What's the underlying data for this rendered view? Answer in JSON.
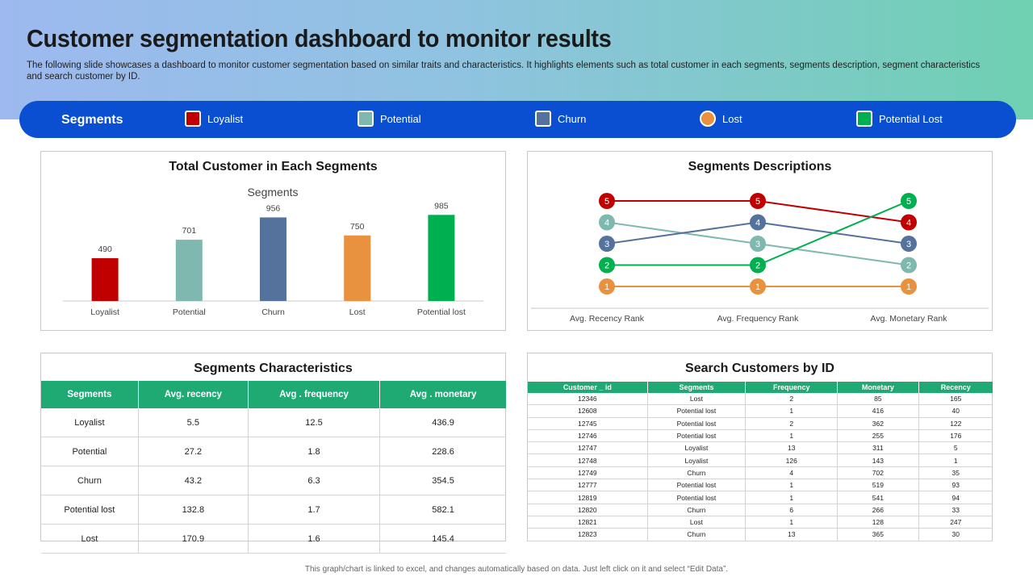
{
  "header": {
    "title": "Customer segmentation dashboard to monitor results",
    "subtitle": "The following slide showcases a dashboard to monitor customer segmentation based on similar traits and characteristics. It highlights elements such as total customer in each segments, segments description, segment characteristics and search customer by ID."
  },
  "legend": {
    "title": "Segments",
    "items": [
      {
        "label": "Loyalist",
        "color": "#c00000",
        "shape": "square"
      },
      {
        "label": "Potential",
        "color": "#7fb8ae",
        "shape": "square"
      },
      {
        "label": "Churn",
        "color": "#54729c",
        "shape": "square"
      },
      {
        "label": "Lost",
        "color": "#e8913f",
        "shape": "circle"
      },
      {
        "label": "Potential Lost",
        "color": "#00b050",
        "shape": "square"
      }
    ]
  },
  "panels": {
    "total": {
      "title": "Total Customer in Each Segments"
    },
    "descriptions": {
      "title": "Segments Descriptions"
    },
    "characteristics": {
      "title": "Segments Characteristics"
    },
    "search": {
      "title": "Search Customers by ID"
    }
  },
  "chart_data": [
    {
      "type": "bar",
      "title": "Segments",
      "categories": [
        "Loyalist",
        "Potential",
        "Churn",
        "Lost",
        "Potential lost"
      ],
      "values": [
        490,
        701,
        956,
        750,
        985
      ],
      "colors": [
        "#c00000",
        "#7fb8ae",
        "#54729c",
        "#e8913f",
        "#00b050"
      ],
      "ylim": [
        0,
        1200
      ],
      "grid": false
    },
    {
      "type": "line",
      "title": "",
      "x": [
        "Avg. Recency Rank",
        "Avg. Frequency Rank",
        "Avg. Monetary Rank"
      ],
      "ylim": [
        0.5,
        5.5
      ],
      "series": [
        {
          "color": "#c00000",
          "values": [
            5,
            5,
            4
          ]
        },
        {
          "color": "#7fb8ae",
          "values": [
            4,
            3,
            2
          ]
        },
        {
          "color": "#54729c",
          "values": [
            3,
            4,
            3
          ]
        },
        {
          "color": "#00b050",
          "values": [
            2,
            2,
            5
          ]
        },
        {
          "color": "#e8913f",
          "values": [
            1,
            1,
            1
          ]
        }
      ]
    }
  ],
  "characteristics": {
    "headers": [
      "Segments",
      "Avg. recency",
      "Avg . frequency",
      "Avg . monetary"
    ],
    "rows": [
      [
        "Loyalist",
        "5.5",
        "12.5",
        "436.9"
      ],
      [
        "Potential",
        "27.2",
        "1.8",
        "228.6"
      ],
      [
        "Churn",
        "43.2",
        "6.3",
        "354.5"
      ],
      [
        "Potential lost",
        "132.8",
        "1.7",
        "582.1"
      ],
      [
        "Lost",
        "170.9",
        "1.6",
        "145.4"
      ]
    ]
  },
  "customers": {
    "headers": [
      "Customer _ id",
      "Segments",
      "Frequency",
      "Monetary",
      "Recency"
    ],
    "rows": [
      [
        "12346",
        "Lost",
        "2",
        "85",
        "165"
      ],
      [
        "12608",
        "Potential lost",
        "1",
        "416",
        "40"
      ],
      [
        "12745",
        "Potential lost",
        "2",
        "362",
        "122"
      ],
      [
        "12746",
        "Potential lost",
        "1",
        "255",
        "176"
      ],
      [
        "12747",
        "Loyalist",
        "13",
        "311",
        "5"
      ],
      [
        "12748",
        "Loyalist",
        "126",
        "143",
        "1"
      ],
      [
        "12749",
        "Churn",
        "4",
        "702",
        "35"
      ],
      [
        "12777",
        "Potential lost",
        "1",
        "519",
        "93"
      ],
      [
        "12819",
        "Potential lost",
        "1",
        "541",
        "94"
      ],
      [
        "12820",
        "Churn",
        "6",
        "266",
        "33"
      ],
      [
        "12821",
        "Lost",
        "1",
        "128",
        "247"
      ],
      [
        "12823",
        "Churn",
        "13",
        "365",
        "30"
      ]
    ]
  },
  "footnote": "This graph/chart is linked to excel, and changes automatically based on data. Just left click on it and select “Edit Data”."
}
